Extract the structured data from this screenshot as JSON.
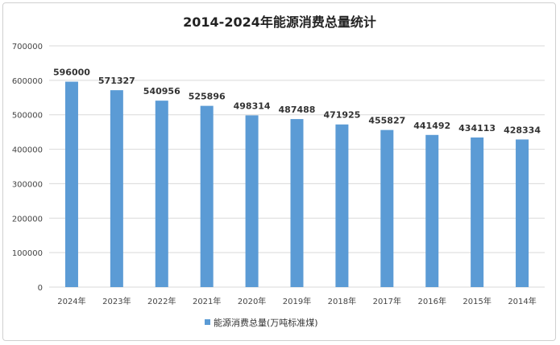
{
  "chart_data": {
    "type": "bar",
    "title": "2014-2024年能源消费总量统计",
    "categories": [
      "2024年",
      "2023年",
      "2022年",
      "2021年",
      "2020年",
      "2019年",
      "2018年",
      "2017年",
      "2016年",
      "2015年",
      "2014年"
    ],
    "series": [
      {
        "name": "能源消费总量(万吨标准煤)",
        "values": [
          596000,
          571327,
          540956,
          525896,
          498314,
          487488,
          471925,
          455827,
          441492,
          434113,
          428334
        ]
      }
    ],
    "ylim": [
      0,
      700000
    ],
    "yticks": [
      0,
      100000,
      200000,
      300000,
      400000,
      500000,
      600000,
      700000
    ],
    "grid": true,
    "legend": "bottom",
    "bar_color": "#5b9bd5"
  }
}
